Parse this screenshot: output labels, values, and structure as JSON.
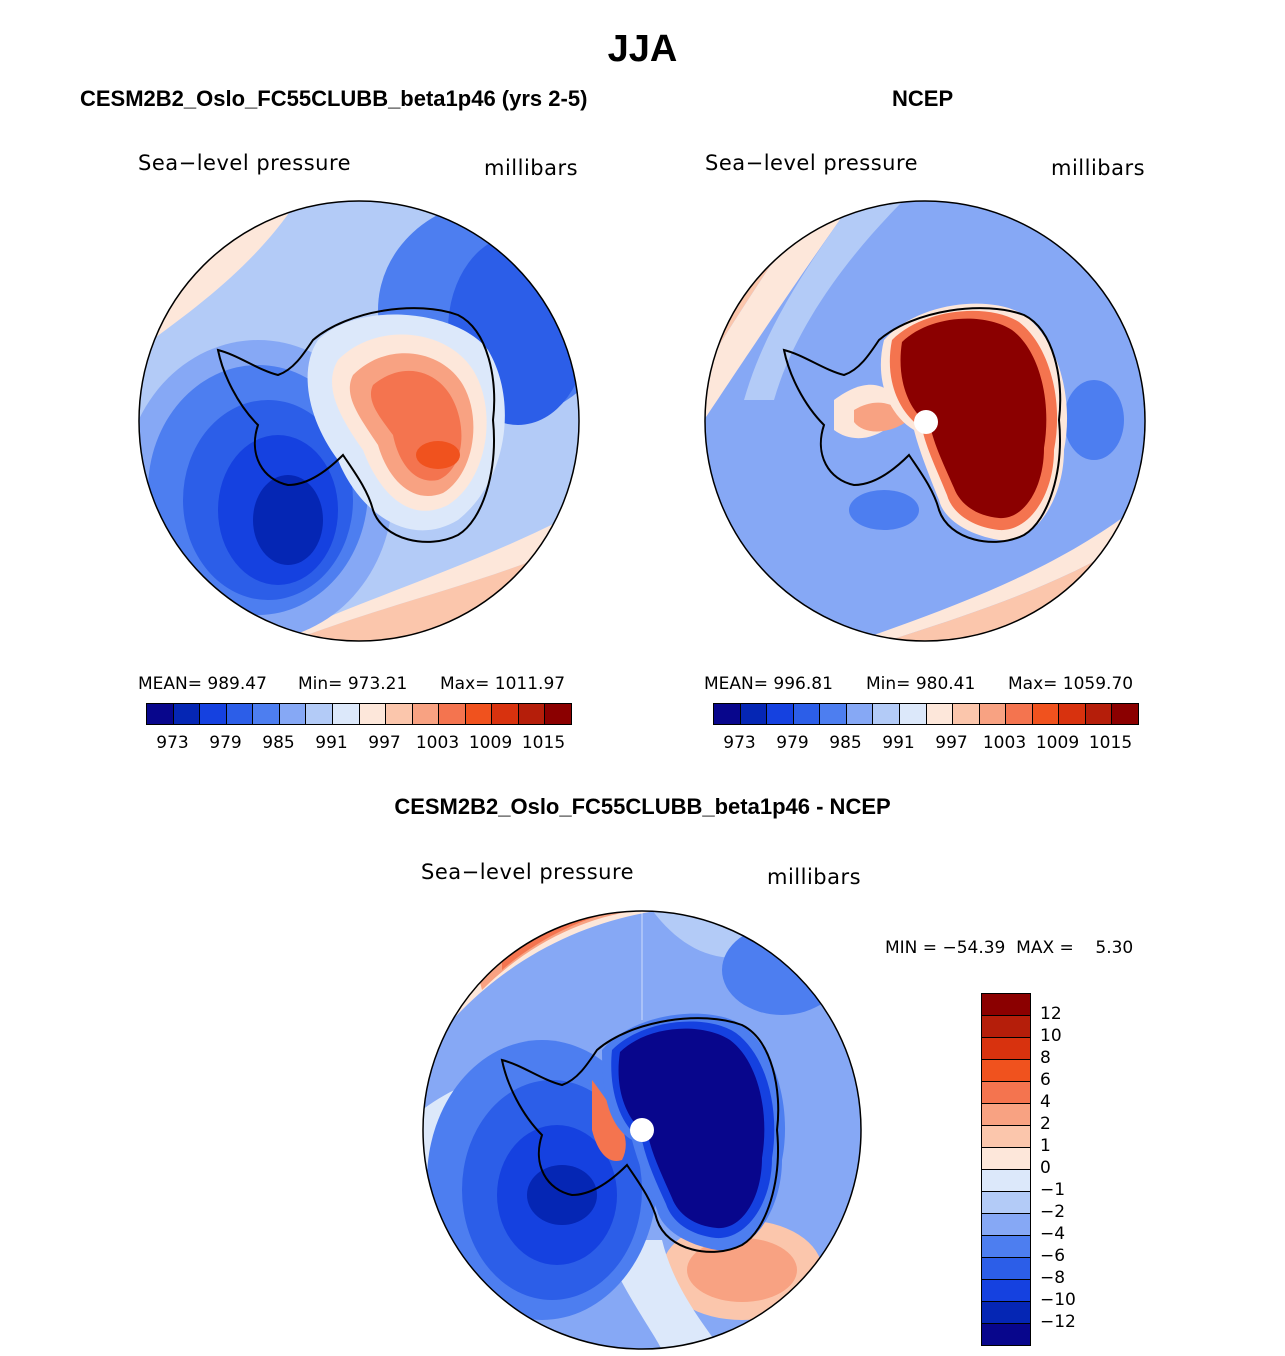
{
  "title": "JJA",
  "panels": [
    {
      "name": "model",
      "heading": "CESM2B2_Oslo_FC55CLUBB_beta1p46 (yrs 2-5)",
      "field_label": "Sea−level pressure",
      "units_label": "millibars",
      "stats": {
        "mean": "MEAN= 989.47",
        "min": "Min= 973.21",
        "max": "Max= 1011.97"
      },
      "ticks": [
        "973",
        "979",
        "985",
        "991",
        "997",
        "1003",
        "1009",
        "1015"
      ]
    },
    {
      "name": "ncep",
      "heading": "NCEP",
      "field_label": "Sea−level pressure",
      "units_label": "millibars",
      "stats": {
        "mean": "MEAN= 996.81",
        "min": "Min= 980.41",
        "max": "Max= 1059.70"
      },
      "ticks": [
        "973",
        "979",
        "985",
        "991",
        "997",
        "1003",
        "1009",
        "1015"
      ]
    },
    {
      "name": "difference",
      "heading": "CESM2B2_Oslo_FC55CLUBB_beta1p46 - NCEP",
      "field_label": "Sea−level pressure",
      "units_label": "millibars",
      "minmax": "MIN = −54.39  MAX =    5.30",
      "ticks": [
        "12",
        "10",
        "8",
        "6",
        "4",
        "2",
        "1",
        "0",
        "−1",
        "−2",
        "−4",
        "−6",
        "−8",
        "−10",
        "−12"
      ]
    }
  ],
  "colors": {
    "abs_scale": [
      "#08068c",
      "#0526b4",
      "#1541e0",
      "#2c5ee8",
      "#4d7ef0",
      "#86a8f5",
      "#b3cbf7",
      "#dce8fa",
      "#fde7da",
      "#fbc6ac",
      "#f8a282",
      "#f4744f",
      "#f0521e",
      "#d8320e",
      "#b51e0a",
      "#8b0000"
    ],
    "diff_scale": [
      "#8b0000",
      "#b51e0a",
      "#d8320e",
      "#f0521e",
      "#f4744f",
      "#f8a282",
      "#fbc6ac",
      "#fde7da",
      "#dce8fa",
      "#b3cbf7",
      "#86a8f5",
      "#4d7ef0",
      "#2c5ee8",
      "#1541e0",
      "#0526b4",
      "#08068c"
    ],
    "coastline": "#000000"
  }
}
